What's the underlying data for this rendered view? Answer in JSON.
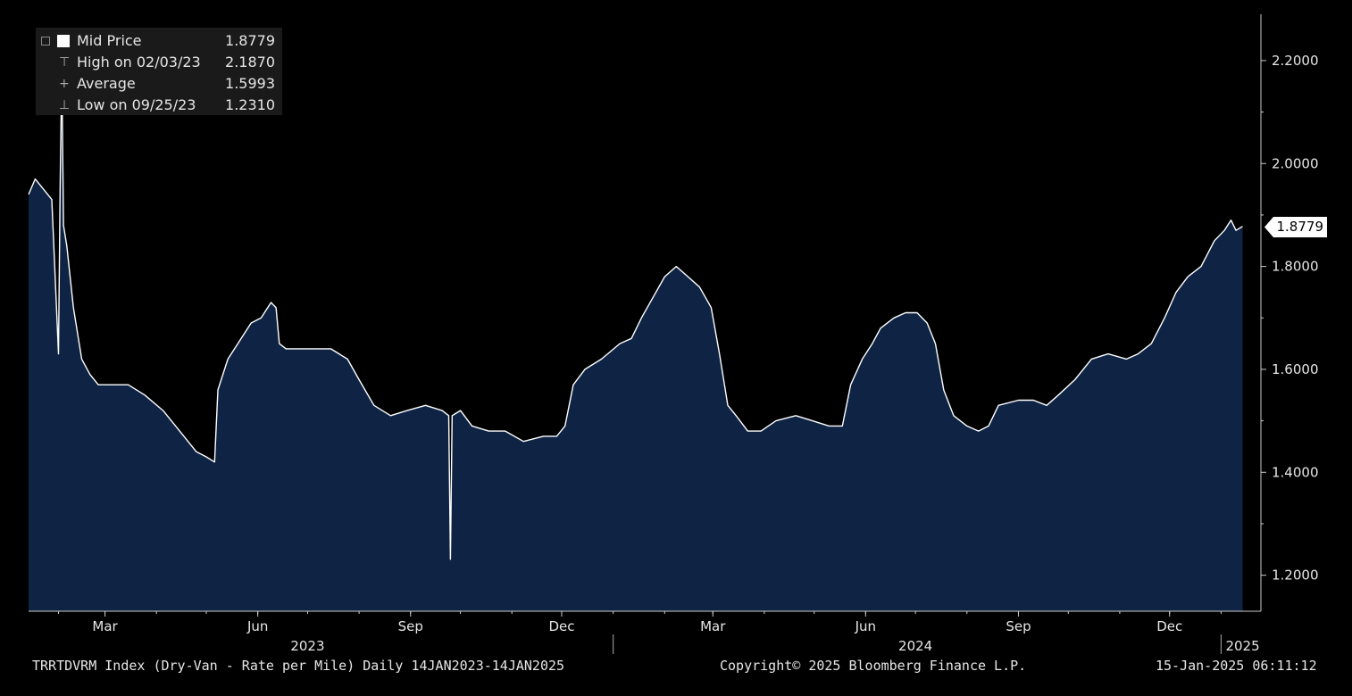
{
  "legend": {
    "mid_label": "Mid Price",
    "mid_value": "1.8779",
    "high_label": "High on 02/03/23",
    "high_value": "2.1870",
    "avg_label": "Average",
    "avg_value": "1.5993",
    "low_label": "Low on 09/25/23",
    "low_value": "1.2310"
  },
  "current_value_badge": "1.8779",
  "footer": {
    "left": "TRRTDVRM Index (Dry-Van - Rate per Mile)  Daily 14JAN2023-14JAN2025",
    "center": "Copyright© 2025 Bloomberg Finance L.P.",
    "right": "15-Jan-2025 06:11:12"
  },
  "colors": {
    "background": "#000000",
    "area_fill": "#0f2444",
    "line": "#ffffff",
    "text": "#e6e6e6"
  },
  "chart_data": {
    "type": "area",
    "title": "",
    "xlabel": "",
    "ylabel": "",
    "series_name": "Mid Price",
    "ylim": [
      1.13,
      2.29
    ],
    "yticks": [
      1.2,
      1.4,
      1.6,
      1.8,
      2.0,
      2.2
    ],
    "ytick_labels": [
      "1.2000",
      "1.4000",
      "1.6000",
      "1.8000",
      "2.0000",
      "2.2000"
    ],
    "xlim": [
      "2023-01-14",
      "2025-01-25"
    ],
    "xticks": [
      {
        "date": "2023-03-01",
        "label": "Mar"
      },
      {
        "date": "2023-06-01",
        "label": "Jun"
      },
      {
        "date": "2023-09-01",
        "label": "Sep"
      },
      {
        "date": "2023-12-01",
        "label": "Dec"
      },
      {
        "date": "2024-03-01",
        "label": "Mar"
      },
      {
        "date": "2024-06-01",
        "label": "Jun"
      },
      {
        "date": "2024-09-01",
        "label": "Sep"
      },
      {
        "date": "2024-12-01",
        "label": "Dec"
      }
    ],
    "year_labels": [
      {
        "date": "2023-07-01",
        "label": "2023"
      },
      {
        "date": "2024-07-01",
        "label": "2024"
      },
      {
        "date": "2025-01-14",
        "label": "2025"
      }
    ],
    "year_separators": [
      "2024-01-01",
      "2025-01-01"
    ],
    "points": [
      [
        "2023-01-14",
        1.94
      ],
      [
        "2023-01-18",
        1.97
      ],
      [
        "2023-01-23",
        1.95
      ],
      [
        "2023-01-28",
        1.93
      ],
      [
        "2023-02-01",
        1.63
      ],
      [
        "2023-02-02",
        1.95
      ],
      [
        "2023-02-03",
        2.187
      ],
      [
        "2023-02-04",
        1.88
      ],
      [
        "2023-02-06",
        1.84
      ],
      [
        "2023-02-10",
        1.72
      ],
      [
        "2023-02-15",
        1.62
      ],
      [
        "2023-02-20",
        1.59
      ],
      [
        "2023-02-25",
        1.57
      ],
      [
        "2023-03-05",
        1.57
      ],
      [
        "2023-03-15",
        1.57
      ],
      [
        "2023-03-25",
        1.55
      ],
      [
        "2023-04-05",
        1.52
      ],
      [
        "2023-04-15",
        1.48
      ],
      [
        "2023-04-25",
        1.44
      ],
      [
        "2023-05-01",
        1.43
      ],
      [
        "2023-05-06",
        1.42
      ],
      [
        "2023-05-08",
        1.56
      ],
      [
        "2023-05-14",
        1.62
      ],
      [
        "2023-05-22",
        1.66
      ],
      [
        "2023-05-28",
        1.69
      ],
      [
        "2023-06-03",
        1.7
      ],
      [
        "2023-06-09",
        1.73
      ],
      [
        "2023-06-12",
        1.72
      ],
      [
        "2023-06-14",
        1.65
      ],
      [
        "2023-06-18",
        1.64
      ],
      [
        "2023-06-25",
        1.64
      ],
      [
        "2023-07-05",
        1.64
      ],
      [
        "2023-07-15",
        1.64
      ],
      [
        "2023-07-25",
        1.62
      ],
      [
        "2023-08-01",
        1.58
      ],
      [
        "2023-08-10",
        1.53
      ],
      [
        "2023-08-20",
        1.51
      ],
      [
        "2023-08-30",
        1.52
      ],
      [
        "2023-09-10",
        1.53
      ],
      [
        "2023-09-20",
        1.52
      ],
      [
        "2023-09-24",
        1.51
      ],
      [
        "2023-09-25",
        1.231
      ],
      [
        "2023-09-26",
        1.51
      ],
      [
        "2023-10-01",
        1.52
      ],
      [
        "2023-10-08",
        1.49
      ],
      [
        "2023-10-18",
        1.48
      ],
      [
        "2023-10-28",
        1.48
      ],
      [
        "2023-11-08",
        1.46
      ],
      [
        "2023-11-20",
        1.47
      ],
      [
        "2023-11-28",
        1.47
      ],
      [
        "2023-12-03",
        1.49
      ],
      [
        "2023-12-08",
        1.57
      ],
      [
        "2023-12-15",
        1.6
      ],
      [
        "2023-12-25",
        1.62
      ],
      [
        "2024-01-05",
        1.65
      ],
      [
        "2024-01-12",
        1.66
      ],
      [
        "2024-01-18",
        1.7
      ],
      [
        "2024-01-25",
        1.74
      ],
      [
        "2024-02-01",
        1.78
      ],
      [
        "2024-02-08",
        1.8
      ],
      [
        "2024-02-15",
        1.78
      ],
      [
        "2024-02-22",
        1.76
      ],
      [
        "2024-02-29",
        1.72
      ],
      [
        "2024-03-05",
        1.63
      ],
      [
        "2024-03-10",
        1.53
      ],
      [
        "2024-03-15",
        1.51
      ],
      [
        "2024-03-22",
        1.48
      ],
      [
        "2024-03-30",
        1.48
      ],
      [
        "2024-04-08",
        1.5
      ],
      [
        "2024-04-20",
        1.51
      ],
      [
        "2024-04-30",
        1.5
      ],
      [
        "2024-05-10",
        1.49
      ],
      [
        "2024-05-18",
        1.49
      ],
      [
        "2024-05-23",
        1.57
      ],
      [
        "2024-05-30",
        1.62
      ],
      [
        "2024-06-05",
        1.65
      ],
      [
        "2024-06-10",
        1.68
      ],
      [
        "2024-06-18",
        1.7
      ],
      [
        "2024-06-25",
        1.71
      ],
      [
        "2024-07-02",
        1.71
      ],
      [
        "2024-07-08",
        1.69
      ],
      [
        "2024-07-13",
        1.65
      ],
      [
        "2024-07-18",
        1.56
      ],
      [
        "2024-07-24",
        1.51
      ],
      [
        "2024-08-01",
        1.49
      ],
      [
        "2024-08-08",
        1.48
      ],
      [
        "2024-08-14",
        1.49
      ],
      [
        "2024-08-20",
        1.53
      ],
      [
        "2024-09-01",
        1.54
      ],
      [
        "2024-09-10",
        1.54
      ],
      [
        "2024-09-18",
        1.53
      ],
      [
        "2024-09-25",
        1.55
      ],
      [
        "2024-10-05",
        1.58
      ],
      [
        "2024-10-15",
        1.62
      ],
      [
        "2024-10-25",
        1.63
      ],
      [
        "2024-11-05",
        1.62
      ],
      [
        "2024-11-12",
        1.63
      ],
      [
        "2024-11-20",
        1.65
      ],
      [
        "2024-11-28",
        1.7
      ],
      [
        "2024-12-05",
        1.75
      ],
      [
        "2024-12-12",
        1.78
      ],
      [
        "2024-12-20",
        1.8
      ],
      [
        "2024-12-28",
        1.85
      ],
      [
        "2025-01-03",
        1.87
      ],
      [
        "2025-01-07",
        1.89
      ],
      [
        "2025-01-10",
        1.87
      ],
      [
        "2025-01-14",
        1.8779
      ]
    ]
  }
}
